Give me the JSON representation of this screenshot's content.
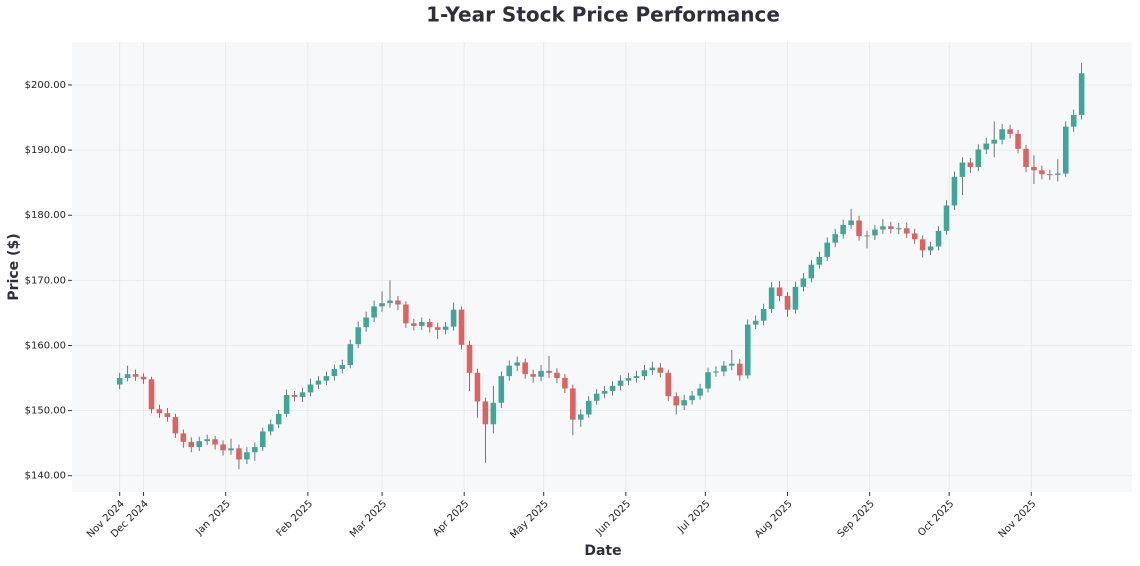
{
  "chart_data": {
    "type": "candlestick",
    "title": "1-Year Stock Price Performance",
    "x_label": "Date",
    "y_label": "Price ($)",
    "up_color": "#3fa79a",
    "down_color": "#e0625f",
    "grid": true,
    "xlim": [
      -18,
      382
    ],
    "ylim": [
      137.5,
      206.6
    ],
    "xticks": [
      {
        "value": 0,
        "label": "Nov 2024"
      },
      {
        "value": 9,
        "label": "Dec 2024"
      },
      {
        "value": 40,
        "label": "Jan 2025"
      },
      {
        "value": 71,
        "label": "Feb 2025"
      },
      {
        "value": 99,
        "label": "Mar 2025"
      },
      {
        "value": 130,
        "label": "Apr 2025"
      },
      {
        "value": 160,
        "label": "May 2025"
      },
      {
        "value": 191,
        "label": "Jun 2025"
      },
      {
        "value": 221,
        "label": "Jul 2025"
      },
      {
        "value": 252,
        "label": "Aug 2025"
      },
      {
        "value": 283,
        "label": "Sep 2025"
      },
      {
        "value": 313,
        "label": "Oct 2025"
      },
      {
        "value": 344,
        "label": "Nov 2025"
      }
    ],
    "yticks": [
      {
        "value": 140,
        "label": "$140.00"
      },
      {
        "value": 150,
        "label": "$150.00"
      },
      {
        "value": 160,
        "label": "$160.00"
      },
      {
        "value": 170,
        "label": "$170.00"
      },
      {
        "value": 180,
        "label": "$180.00"
      },
      {
        "value": 190,
        "label": "$190.00"
      },
      {
        "value": 200,
        "label": "$200.00"
      }
    ],
    "x": [
      0,
      3,
      6,
      9,
      12,
      15,
      18,
      21,
      24,
      27,
      30,
      33,
      36,
      39,
      42,
      45,
      48,
      51,
      54,
      57,
      60,
      63,
      66,
      69,
      72,
      75,
      78,
      81,
      84,
      87,
      90,
      93,
      96,
      99,
      102,
      105,
      108,
      111,
      114,
      117,
      120,
      123,
      126,
      129,
      132,
      135,
      138,
      141,
      144,
      147,
      150,
      153,
      156,
      159,
      162,
      165,
      168,
      171,
      174,
      177,
      180,
      183,
      186,
      189,
      192,
      195,
      198,
      201,
      204,
      207,
      210,
      213,
      216,
      219,
      222,
      225,
      228,
      231,
      234,
      237,
      240,
      243,
      246,
      249,
      252,
      255,
      258,
      261,
      264,
      267,
      270,
      273,
      276,
      279,
      282,
      285,
      288,
      291,
      294,
      297,
      300,
      303,
      306,
      309,
      312,
      315,
      318,
      321,
      324,
      327,
      330,
      333,
      336,
      339,
      342,
      345,
      348,
      351,
      354,
      357,
      360,
      363
    ],
    "open": [
      154.0,
      155.0,
      155.6,
      155.2,
      154.8,
      150.2,
      149.6,
      149.0,
      146.5,
      145.2,
      144.4,
      145.3,
      145.6,
      144.8,
      143.9,
      144.2,
      142.5,
      143.6,
      144.4,
      146.8,
      147.9,
      149.5,
      152.4,
      152.1,
      152.8,
      154.0,
      154.6,
      155.3,
      156.4,
      157.0,
      160.2,
      162.8,
      164.3,
      166.0,
      166.5,
      166.9,
      166.3,
      163.4,
      163.0,
      163.6,
      162.8,
      162.4,
      162.9,
      165.5,
      160.1,
      155.8,
      151.4,
      147.9,
      151.2,
      155.3,
      156.9,
      157.4,
      155.6,
      155.2,
      156.1,
      155.8,
      155.0,
      153.4,
      148.6,
      149.4,
      151.5,
      152.6,
      153.0,
      153.8,
      154.6,
      155.0,
      155.3,
      156.2,
      156.6,
      155.8,
      152.2,
      150.8,
      151.6,
      152.3,
      153.4,
      155.9,
      156.0,
      156.9,
      157.2,
      155.4,
      163.2,
      163.8,
      165.6,
      168.9,
      167.6,
      165.5,
      169.0,
      170.3,
      172.4,
      173.6,
      175.8,
      177.1,
      178.5,
      179.2,
      176.8,
      176.9,
      177.8,
      178.3,
      177.9,
      178.0,
      177.2,
      176.3,
      174.6,
      175.2,
      177.6,
      181.5,
      185.9,
      188.1,
      187.4,
      190.1,
      191.0,
      191.6,
      193.2,
      192.5,
      190.2,
      187.4,
      186.9,
      186.3,
      186.2,
      186.4,
      193.6,
      195.4
    ],
    "high": [
      155.8,
      156.9,
      156.3,
      155.7,
      155.2,
      150.9,
      150.4,
      149.5,
      147.1,
      145.9,
      146.0,
      146.3,
      146.1,
      145.4,
      145.7,
      144.8,
      144.4,
      145.1,
      147.4,
      148.6,
      150.1,
      153.2,
      153.0,
      153.5,
      154.9,
      155.3,
      156.0,
      157.1,
      157.8,
      160.9,
      163.7,
      165.2,
      166.9,
      168.3,
      170.0,
      167.6,
      166.8,
      164.1,
      164.3,
      164.1,
      163.5,
      163.6,
      166.6,
      166.0,
      160.7,
      156.4,
      152.0,
      153.8,
      156.0,
      157.7,
      158.3,
      158.0,
      156.3,
      157.0,
      158.4,
      156.5,
      155.6,
      154.0,
      150.2,
      152.2,
      153.3,
      153.8,
      154.5,
      155.4,
      155.8,
      156.1,
      157.0,
      157.5,
      157.3,
      156.3,
      152.8,
      152.4,
      153.0,
      154.1,
      156.6,
      156.8,
      157.6,
      159.3,
      157.9,
      164.0,
      164.6,
      166.4,
      169.7,
      169.9,
      168.2,
      169.8,
      171.1,
      173.1,
      174.4,
      176.6,
      177.9,
      179.3,
      181.0,
      179.9,
      177.6,
      178.5,
      179.4,
      179.0,
      178.8,
      178.9,
      177.9,
      176.9,
      175.9,
      178.3,
      182.3,
      186.7,
      188.9,
      188.8,
      190.9,
      191.9,
      194.4,
      194.0,
      193.9,
      193.1,
      190.8,
      189.2,
      187.6,
      187.0,
      188.6,
      194.4,
      196.2,
      203.4
    ],
    "low": [
      153.3,
      154.5,
      154.6,
      154.1,
      149.6,
      148.9,
      148.3,
      145.8,
      144.3,
      143.6,
      143.8,
      144.7,
      144.0,
      143.1,
      143.2,
      141.0,
      141.8,
      142.3,
      143.8,
      146.2,
      147.3,
      149.0,
      151.4,
      151.3,
      152.2,
      153.3,
      153.9,
      154.6,
      155.7,
      156.5,
      159.6,
      162.1,
      163.6,
      165.2,
      165.8,
      165.4,
      162.7,
      162.3,
      162.4,
      162.0,
      161.0,
      161.7,
      162.3,
      159.4,
      153.0,
      148.9,
      142.0,
      146.5,
      150.4,
      154.6,
      156.1,
      154.9,
      154.3,
      154.5,
      155.0,
      154.2,
      152.7,
      146.2,
      147.5,
      148.9,
      150.9,
      151.9,
      152.3,
      153.1,
      153.9,
      154.3,
      154.7,
      155.5,
      155.1,
      151.5,
      149.4,
      150.1,
      150.9,
      151.7,
      152.8,
      155.2,
      155.3,
      156.2,
      154.6,
      154.9,
      162.5,
      163.1,
      165.0,
      166.8,
      164.4,
      164.9,
      168.3,
      169.7,
      171.8,
      173.0,
      175.1,
      176.4,
      177.9,
      176.1,
      174.9,
      176.2,
      177.1,
      177.2,
      177.1,
      176.5,
      175.6,
      173.5,
      173.9,
      174.6,
      177.0,
      180.8,
      183.1,
      186.5,
      186.8,
      189.4,
      188.9,
      190.9,
      191.8,
      189.5,
      186.6,
      184.8,
      185.5,
      185.4,
      185.2,
      185.9,
      192.8,
      194.7
    ],
    "close": [
      155.0,
      155.6,
      155.2,
      154.8,
      150.2,
      149.6,
      149.0,
      146.5,
      145.2,
      144.4,
      145.3,
      145.6,
      144.8,
      143.9,
      144.2,
      142.5,
      143.6,
      144.4,
      146.8,
      147.9,
      149.5,
      152.4,
      152.1,
      152.8,
      154.0,
      154.6,
      155.3,
      156.4,
      157.0,
      160.2,
      162.8,
      164.3,
      166.0,
      166.5,
      166.9,
      166.3,
      163.4,
      163.0,
      163.6,
      162.8,
      162.4,
      162.9,
      165.5,
      160.1,
      155.8,
      151.4,
      147.9,
      151.2,
      155.3,
      156.9,
      157.4,
      155.6,
      155.2,
      156.1,
      155.8,
      155.0,
      153.4,
      148.6,
      149.4,
      151.5,
      152.6,
      153.0,
      153.8,
      154.6,
      155.0,
      155.3,
      156.2,
      156.6,
      155.8,
      152.2,
      150.8,
      151.6,
      152.3,
      153.4,
      155.9,
      156.0,
      156.9,
      157.2,
      155.4,
      163.2,
      163.8,
      165.6,
      168.9,
      167.6,
      165.5,
      169.0,
      170.3,
      172.4,
      173.6,
      175.8,
      177.1,
      178.5,
      179.2,
      176.8,
      176.9,
      177.8,
      178.3,
      177.9,
      178.0,
      177.2,
      176.3,
      174.6,
      175.2,
      177.6,
      181.5,
      185.9,
      188.1,
      187.4,
      190.1,
      191.0,
      191.6,
      193.2,
      192.5,
      190.2,
      187.4,
      186.9,
      186.3,
      186.2,
      186.4,
      193.6,
      195.4,
      201.8
    ]
  }
}
